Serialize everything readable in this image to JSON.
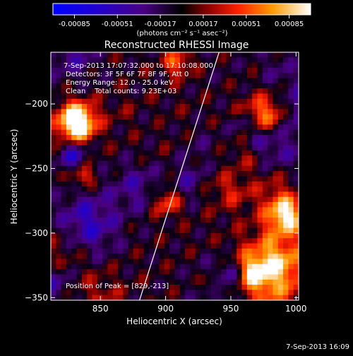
{
  "colorbar": {
    "ticks": [
      "-0.00085",
      "-0.00051",
      "-0.00017",
      "0.00017",
      "0.00051",
      "0.00085"
    ],
    "unit_label": "(photons cm⁻² s⁻¹ asec⁻²)"
  },
  "title": "Reconstructed RHESSI Image",
  "info": {
    "time_range": "7-Sep-2013 17:07:32.000 to 17:10:08.000",
    "detectors": "Detectors: 3F 5F 6F 7F 8F 9F, Att 0",
    "energy": "Energy Range: 12.0 - 25.0 keV",
    "clean": "Clean    Total counts: 9.23E+03",
    "peak": "Position of Peak = [829,-213]"
  },
  "footer_date": "7-Sep-2013 16:09",
  "chart_data": {
    "type": "heatmap",
    "title": "Reconstructed RHESSI Image",
    "xlabel": "Heliocentric X (arcsec)",
    "ylabel": "Heliocentric Y (arcsec)",
    "x_ticks": [
      850,
      900,
      950,
      1000
    ],
    "y_ticks": [
      -200,
      -250,
      -300,
      -350
    ],
    "xlim": [
      812,
      1002
    ],
    "ylim": [
      -352,
      -160
    ],
    "colorbar_range": [
      -0.00085,
      0.00085
    ],
    "colormap": [
      "#0000ff",
      "#4b0082",
      "#000000",
      "#8b0000",
      "#ff2200",
      "#ff9900",
      "#ffff66",
      "#ffffff"
    ],
    "peak_position": [
      829,
      -213
    ],
    "limb_line": {
      "x": [
        880,
        941
      ],
      "y": [
        -352,
        -160
      ],
      "color": "#ffffff"
    }
  }
}
